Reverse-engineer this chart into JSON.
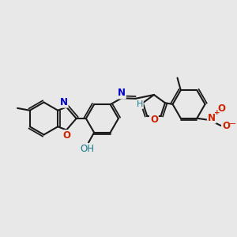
{
  "bg_color": "#e8e8e8",
  "bond_color": "#1a1a1a",
  "bond_width": 1.5,
  "N_color": "#0000cc",
  "O_color": "#cc2200",
  "teal_color": "#1a7a8a",
  "font_size": 9,
  "figsize": [
    3.0,
    3.0
  ],
  "dpi": 100,
  "xlim": [
    0,
    10
  ],
  "ylim": [
    0,
    10
  ]
}
